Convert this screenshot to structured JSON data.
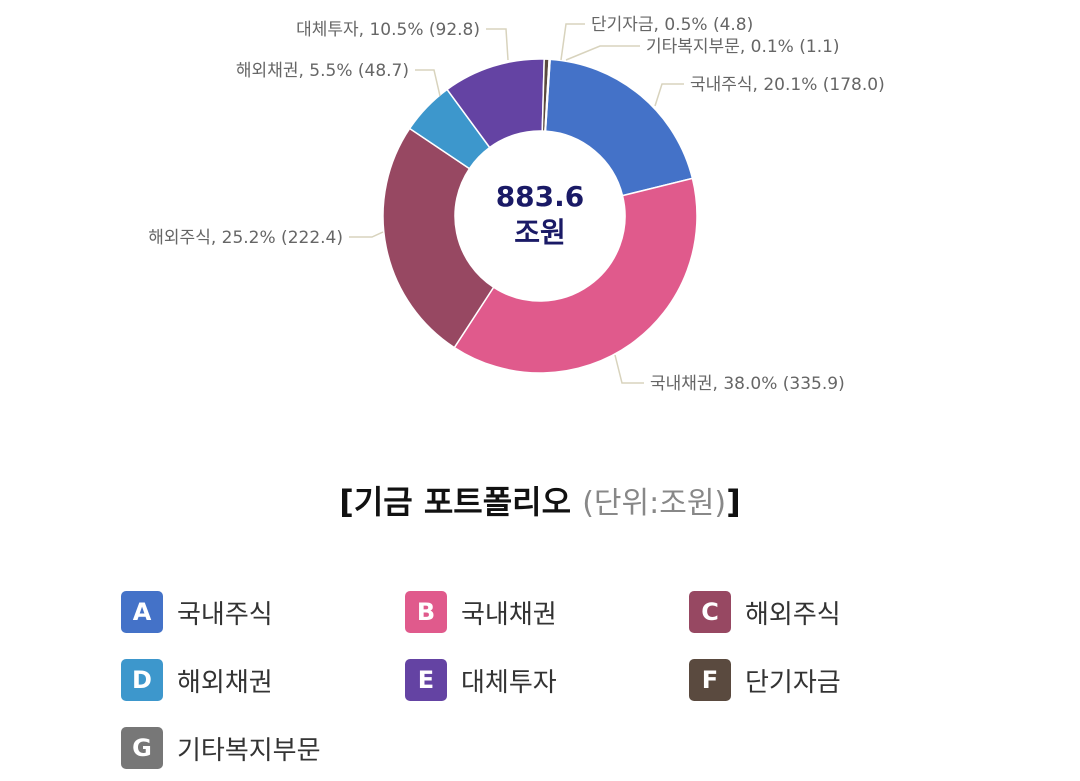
{
  "chart_data": {
    "type": "pie",
    "center_value": "883.6",
    "center_unit": "조원",
    "title": "기금 포트폴리오",
    "title_unit": "(단위:조원)",
    "slices": [
      {
        "name": "국내주식",
        "percent": 20.1,
        "value": 178.0,
        "label": "국내주식, 20.1% (178.0)",
        "color": "#4472C8"
      },
      {
        "name": "국내채권",
        "percent": 38.0,
        "value": 335.9,
        "label": "국내채권, 38.0% (335.9)",
        "color": "#E05A8C"
      },
      {
        "name": "해외주식",
        "percent": 25.2,
        "value": 222.4,
        "label": "해외주식, 25.2% (222.4)",
        "color": "#974862"
      },
      {
        "name": "해외채권",
        "percent": 5.5,
        "value": 48.7,
        "label": "해외채권, 5.5% (48.7)",
        "color": "#3D97CC"
      },
      {
        "name": "대체투자",
        "percent": 10.5,
        "value": 92.8,
        "label": "대체투자, 10.5% (92.8)",
        "color": "#6443A3"
      },
      {
        "name": "단기자금",
        "percent": 0.5,
        "value": 4.8,
        "label": "단기자금, 0.5% (4.8)",
        "color": "#5A4A3F"
      },
      {
        "name": "기타복지부문",
        "percent": 0.1,
        "value": 1.1,
        "label": "기타복지부문, 0.1% (1.1)",
        "color": "#777777"
      }
    ]
  },
  "legend": [
    {
      "letter": "A",
      "label": "국내주식",
      "color": "#4472C8"
    },
    {
      "letter": "B",
      "label": "국내채권",
      "color": "#E05A8C"
    },
    {
      "letter": "C",
      "label": "해외주식",
      "color": "#974862"
    },
    {
      "letter": "D",
      "label": "해외채권",
      "color": "#3D97CC"
    },
    {
      "letter": "E",
      "label": "대체투자",
      "color": "#6443A3"
    },
    {
      "letter": "F",
      "label": "단기자금",
      "color": "#5A4A3F"
    },
    {
      "letter": "G",
      "label": "기타복지부문",
      "color": "#777777"
    }
  ]
}
